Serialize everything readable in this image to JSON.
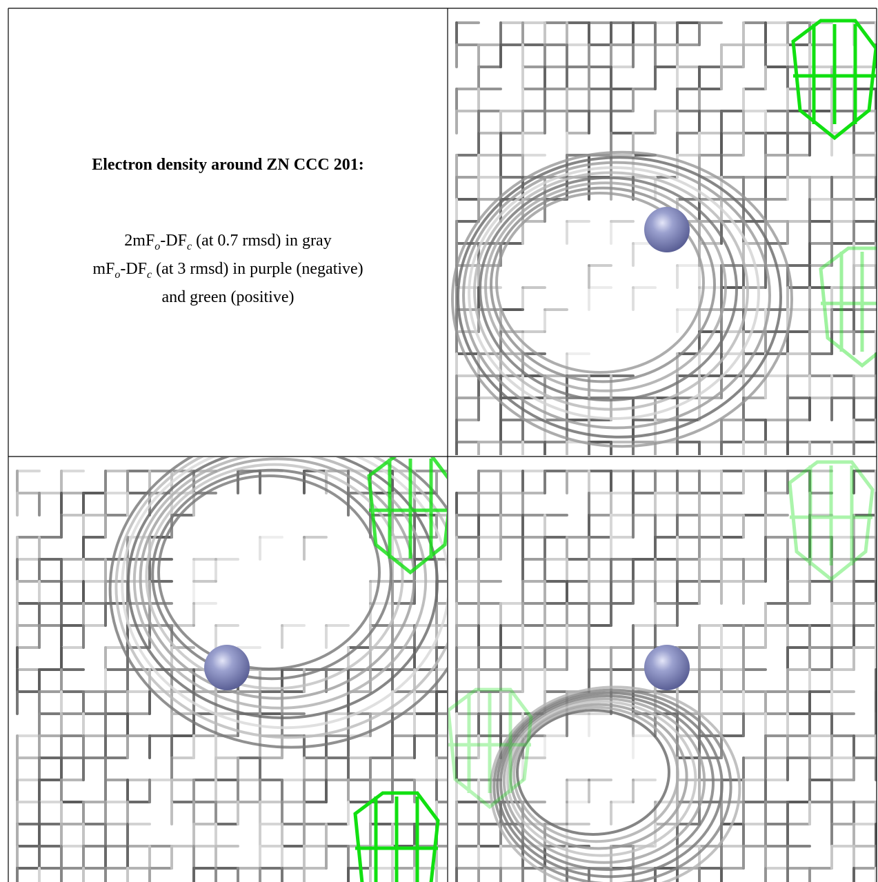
{
  "caption": {
    "title": "Electron density around ZN CCC 201:",
    "lines": [
      [
        "2mF",
        "o",
        "-DF",
        "c",
        " (at 0.7 rmsd) in gray"
      ],
      [
        "mF",
        "o",
        "-DF",
        "c",
        " (at 3 rmsd) in purple (negative)"
      ],
      [
        "and green (positive)"
      ]
    ]
  }
}
